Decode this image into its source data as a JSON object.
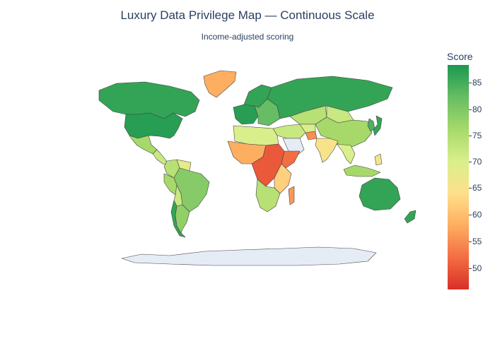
{
  "chart": {
    "title": "Luxury Data Privilege Map — Continuous Scale",
    "subtitle": "Income-adjusted scoring"
  },
  "colorbar": {
    "title": "Score",
    "ticks": [
      "85",
      "80",
      "75",
      "70",
      "65",
      "60",
      "55",
      "50"
    ],
    "colors": [
      "#1a9850",
      "#66bd63",
      "#a6d96a",
      "#d9ef8b",
      "#fee08b",
      "#fdae61",
      "#f46d43",
      "#d73027"
    ]
  },
  "chart_data": {
    "type": "heatmap",
    "subtype": "choropleth",
    "title": "Luxury Data Privilege Map — Continuous Scale",
    "subtitle": "Income-adjusted scoring",
    "colorbar_title": "Score",
    "range": [
      46,
      88
    ],
    "colorscale": "RdYlGn",
    "regions": [
      {
        "name": "Canada",
        "value": 86
      },
      {
        "name": "United States",
        "value": 87
      },
      {
        "name": "Greenland",
        "value": 58
      },
      {
        "name": "Mexico",
        "value": 76
      },
      {
        "name": "Central America",
        "value": 72
      },
      {
        "name": "Colombia",
        "value": 74
      },
      {
        "name": "Venezuela",
        "value": 68
      },
      {
        "name": "Brazil",
        "value": 79
      },
      {
        "name": "Peru",
        "value": 76
      },
      {
        "name": "Bolivia",
        "value": 72
      },
      {
        "name": "Argentina",
        "value": 78
      },
      {
        "name": "Chile",
        "value": 86
      },
      {
        "name": "Western Europe",
        "value": 87
      },
      {
        "name": "Scandinavia",
        "value": 86
      },
      {
        "name": "Eastern Europe",
        "value": 82
      },
      {
        "name": "Russia",
        "value": 86
      },
      {
        "name": "Kazakhstan",
        "value": 74
      },
      {
        "name": "Central Asia",
        "value": 70
      },
      {
        "name": "Mongolia",
        "value": 72
      },
      {
        "name": "China",
        "value": 76
      },
      {
        "name": "Korea",
        "value": 84
      },
      {
        "name": "Japan",
        "value": 86
      },
      {
        "name": "Middle East",
        "value": 72
      },
      {
        "name": "Saudi Arabia",
        "value": null
      },
      {
        "name": "Afghanistan",
        "value": 55
      },
      {
        "name": "India",
        "value": 65
      },
      {
        "name": "Southeast Asia",
        "value": 70
      },
      {
        "name": "Indonesia",
        "value": 76
      },
      {
        "name": "Philippines",
        "value": 66
      },
      {
        "name": "Australia",
        "value": 86
      },
      {
        "name": "New Zealand",
        "value": 86
      },
      {
        "name": "North Africa",
        "value": 70
      },
      {
        "name": "West Africa",
        "value": 58
      },
      {
        "name": "Central Africa",
        "value": 50
      },
      {
        "name": "Horn of Africa",
        "value": 52
      },
      {
        "name": "East Africa",
        "value": 62
      },
      {
        "name": "Southern Africa",
        "value": 74
      },
      {
        "name": "Madagascar",
        "value": 56
      },
      {
        "name": "Antarctica",
        "value": null
      }
    ]
  }
}
